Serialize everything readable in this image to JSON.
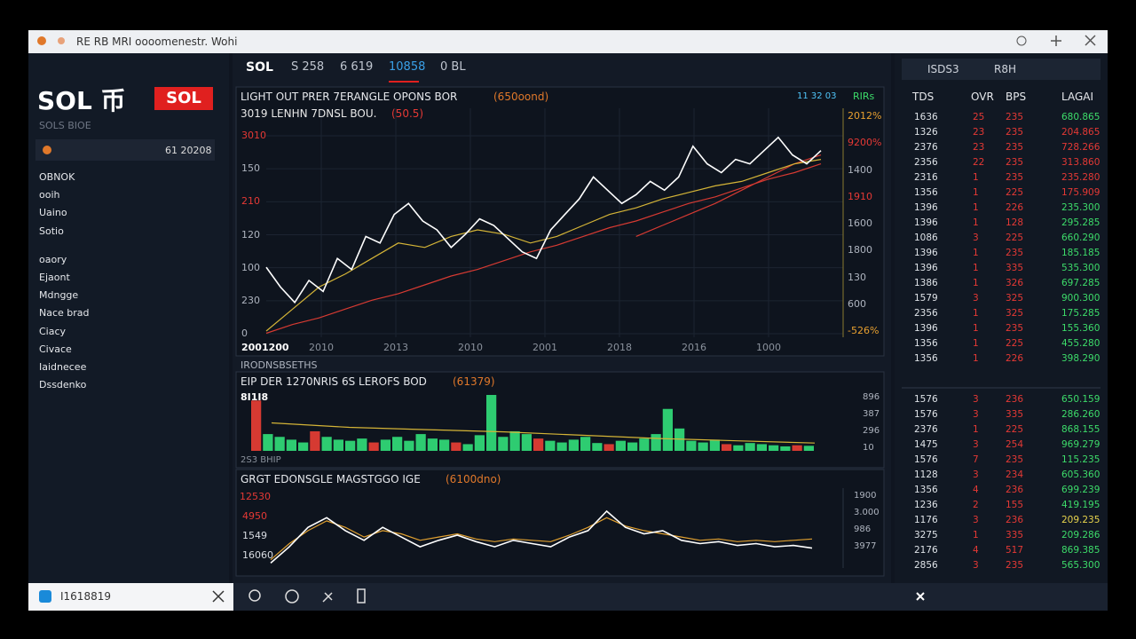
{
  "window_title": "RE RB MRI oooomenestr. Wohi",
  "sidebar": {
    "title": "SOL 币",
    "badge": "SOL",
    "subtitle": "SOLS BIOE",
    "input": "61 20208",
    "menu": [
      "OBNOK",
      "ooih",
      "Uaino",
      "Sotio",
      "oaory",
      "Ejaont",
      "Mdngge",
      "Nace brad",
      "Ciacy",
      "Civace",
      "Iaidnecee",
      "Dssdenko"
    ]
  },
  "tabs": [
    "SOL",
    "S 258",
    "6 619",
    "10858",
    "0 BL"
  ],
  "price_chart": {
    "title": "LIGHT OUT PRER 7ERANGLE OPONS BOR",
    "title_note": "(650oond)",
    "status": "11 32 03",
    "status_tag": "RIRs",
    "subtitle": "3019 LENHN 7DNSL BOU.",
    "subtitle_note": "(50.5)",
    "ylim": [
      0,
      100
    ],
    "left_labels": [
      "3010",
      "150",
      "210",
      "120",
      "100",
      "230",
      "0"
    ],
    "right_labels": [
      "2012%",
      "9200%",
      "1400",
      "1910",
      "1600",
      "1800",
      "130",
      "600",
      "-526%"
    ],
    "x_labels": [
      "2001200",
      "2010",
      "2013",
      "2010",
      "2001",
      "2018",
      "2016",
      "1000"
    ],
    "series": [
      {
        "color": "#ffffff",
        "values": [
          31,
          22,
          15,
          25,
          20,
          35,
          30,
          45,
          42,
          55,
          60,
          52,
          48,
          40,
          46,
          53,
          50,
          44,
          38,
          35,
          48,
          55,
          62,
          72,
          66,
          60,
          64,
          70,
          66,
          72,
          86,
          78,
          74,
          80,
          78,
          84,
          90,
          82,
          78,
          84
        ]
      },
      {
        "color": "#d4b437",
        "values": [
          2,
          12,
          22,
          28,
          35,
          42,
          40,
          45,
          48,
          46,
          42,
          45,
          50,
          55,
          58,
          62,
          65,
          68,
          70,
          74,
          78,
          80
        ]
      },
      {
        "color": "#d63a32",
        "values": [
          1,
          5,
          8,
          12,
          16,
          19,
          23,
          27,
          30,
          34,
          38,
          41,
          45,
          49,
          52,
          56,
          60,
          63,
          67,
          71,
          74,
          78
        ]
      },
      {
        "color": "#d63a32",
        "values": [
          null,
          null,
          null,
          null,
          null,
          null,
          null,
          null,
          null,
          null,
          null,
          null,
          null,
          null,
          45,
          50,
          55,
          60,
          66,
          72,
          78,
          82
        ]
      }
    ]
  },
  "section_label": "IRODNSBSETHS",
  "volume_chart": {
    "title": "EIP DER 1270NRIS 6S LEROFS BOD",
    "title_note": "(61379)",
    "corner": "8I1I8",
    "footer": "2S3 BHIP",
    "right_labels": [
      "896",
      "387",
      "296",
      "10"
    ],
    "ylim": [
      0,
      100
    ],
    "series": [
      {
        "color": "#2ecc71",
        "values": [
          null,
          30,
          25,
          20,
          15,
          null,
          25,
          20,
          18,
          22,
          null,
          20,
          25,
          18,
          30,
          22,
          20,
          null,
          12,
          28,
          100,
          25,
          35,
          30,
          null,
          18,
          15,
          20,
          25,
          14,
          null,
          18,
          15,
          22,
          30,
          75,
          40,
          18,
          15,
          20,
          null,
          10,
          14,
          12,
          10,
          8,
          null,
          9
        ]
      },
      {
        "color": "#d63a32",
        "values": [
          90,
          null,
          null,
          null,
          null,
          35,
          null,
          null,
          null,
          null,
          15,
          null,
          null,
          null,
          null,
          null,
          null,
          15,
          null,
          null,
          null,
          null,
          null,
          null,
          22,
          null,
          null,
          null,
          null,
          null,
          12,
          null,
          null,
          null,
          null,
          null,
          null,
          null,
          null,
          null,
          12,
          null,
          null,
          null,
          null,
          null,
          10,
          null
        ]
      }
    ],
    "line": {
      "color": "#d4b437",
      "values": [
        50,
        42,
        38,
        34,
        28,
        22,
        18,
        14
      ]
    }
  },
  "lower_chart": {
    "title": "GRGT EDONSGLE MAGSTGGO IGE",
    "title_note": "(6100dno)",
    "left_labels": [
      "12530",
      "4950",
      "1549",
      "16060"
    ],
    "right_labels": [
      "1900",
      "3.000",
      "986",
      "3977"
    ],
    "ylim": [
      0,
      100
    ],
    "series": [
      {
        "color": "#ffffff",
        "values": [
          5,
          30,
          60,
          75,
          55,
          40,
          60,
          45,
          30,
          40,
          48,
          38,
          30,
          40,
          35,
          30,
          45,
          55,
          85,
          60,
          50,
          55,
          40,
          35,
          38,
          32,
          35,
          30,
          32,
          28
        ]
      },
      {
        "color": "#e0a030",
        "values": [
          10,
          35,
          55,
          70,
          60,
          45,
          55,
          50,
          40,
          45,
          50,
          42,
          38,
          42,
          40,
          38,
          48,
          60,
          75,
          62,
          55,
          50,
          45,
          40,
          42,
          38,
          40,
          38,
          40,
          42
        ]
      }
    ]
  },
  "order_book": {
    "tabs": [
      "ISDS3",
      "R8H"
    ],
    "columns": [
      "TDS",
      "OVR",
      "BPS",
      "LAGAI"
    ],
    "rows": [
      {
        "cells": [
          "1636",
          "25",
          "235",
          "680.865"
        ],
        "color": "#3ddc6a"
      },
      {
        "cells": [
          "1326",
          "23",
          "235",
          "204.865"
        ],
        "color": "#e53935"
      },
      {
        "cells": [
          "2376",
          "23",
          "235",
          "728.266"
        ],
        "color": "#e53935"
      },
      {
        "cells": [
          "2356",
          "22",
          "235",
          "313.860"
        ],
        "color": "#e53935"
      },
      {
        "cells": [
          "2316",
          "1",
          "235",
          "235.280"
        ],
        "color": "#e53935"
      },
      {
        "cells": [
          "1356",
          "1",
          "225",
          "175.909"
        ],
        "color": "#e53935"
      },
      {
        "cells": [
          "1396",
          "1",
          "226",
          "235.300"
        ],
        "color": "#3ddc6a"
      },
      {
        "cells": [
          "1396",
          "1",
          "128",
          "295.285"
        ],
        "color": "#3ddc6a"
      },
      {
        "cells": [
          "1086",
          "3",
          "225",
          "660.290"
        ],
        "color": "#3ddc6a"
      },
      {
        "cells": [
          "1396",
          "1",
          "235",
          "185.185"
        ],
        "color": "#3ddc6a"
      },
      {
        "cells": [
          "1396",
          "1",
          "335",
          "535.300"
        ],
        "color": "#3ddc6a"
      },
      {
        "cells": [
          "1386",
          "1",
          "326",
          "697.285"
        ],
        "color": "#3ddc6a"
      },
      {
        "cells": [
          "1579",
          "3",
          "325",
          "900.300"
        ],
        "color": "#3ddc6a"
      },
      {
        "cells": [
          "2356",
          "1",
          "325",
          "175.285"
        ],
        "color": "#3ddc6a"
      },
      {
        "cells": [
          "1396",
          "1",
          "235",
          "155.360"
        ],
        "color": "#3ddc6a"
      },
      {
        "cells": [
          "1356",
          "1",
          "225",
          "455.280"
        ],
        "color": "#3ddc6a"
      },
      {
        "cells": [
          "1356",
          "1",
          "226",
          "398.290"
        ],
        "color": "#3ddc6a"
      }
    ],
    "rows2": [
      {
        "cells": [
          "1576",
          "3",
          "236",
          "650.159"
        ],
        "color": "#3ddc6a"
      },
      {
        "cells": [
          "1576",
          "3",
          "335",
          "286.260"
        ],
        "color": "#3ddc6a"
      },
      {
        "cells": [
          "2376",
          "1",
          "225",
          "868.155"
        ],
        "color": "#3ddc6a"
      },
      {
        "cells": [
          "1475",
          "3",
          "254",
          "969.279"
        ],
        "color": "#3ddc6a"
      },
      {
        "cells": [
          "1576",
          "7",
          "235",
          "115.235"
        ],
        "color": "#3ddc6a"
      },
      {
        "cells": [
          "1128",
          "3",
          "234",
          "605.360"
        ],
        "color": "#3ddc6a"
      },
      {
        "cells": [
          "1356",
          "4",
          "236",
          "699.239"
        ],
        "color": "#3ddc6a"
      },
      {
        "cells": [
          "1236",
          "2",
          "155",
          "419.195"
        ],
        "color": "#3ddc6a"
      },
      {
        "cells": [
          "1176",
          "3",
          "236",
          "209.235"
        ],
        "color": "#e8d44d"
      },
      {
        "cells": [
          "3275",
          "1",
          "335",
          "209.286"
        ],
        "color": "#3ddc6a"
      },
      {
        "cells": [
          "2176",
          "4",
          "517",
          "869.385"
        ],
        "color": "#3ddc6a"
      },
      {
        "cells": [
          "2856",
          "3",
          "235",
          "565.300"
        ],
        "color": "#3ddc6a"
      }
    ]
  },
  "taskbar": {
    "search": "I1618819"
  }
}
